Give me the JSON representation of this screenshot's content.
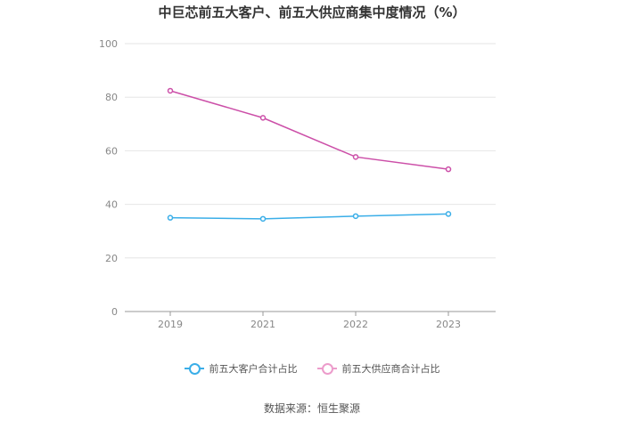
{
  "chart_data": {
    "type": "line",
    "title": "中巨芯前五大客户、前五大供应商集中度情况（%）",
    "x": [
      "2019",
      "2021",
      "2022",
      "2023"
    ],
    "series": [
      {
        "name": "前五大客户合计占比",
        "color": "#3aaee8",
        "values": [
          35.0,
          34.6,
          35.6,
          36.4
        ]
      },
      {
        "name": "前五大供应商合计占比",
        "color": "#cc4fa8",
        "values": [
          82.4,
          72.3,
          57.7,
          53.1
        ]
      }
    ],
    "ylim": [
      0,
      100
    ],
    "yticks": [
      0,
      20,
      40,
      60,
      80,
      100
    ],
    "xlabel": "",
    "ylabel": "",
    "grid": true,
    "legend_position": "bottom"
  },
  "legend_colors": {
    "customers_marker": "#3aaee8",
    "suppliers_marker": "#ec9ccb"
  },
  "source": "数据来源：恒生聚源"
}
